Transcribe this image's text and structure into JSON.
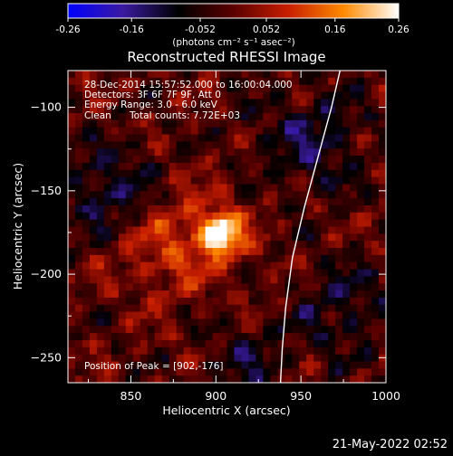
{
  "colorbar": {
    "ticks": [
      "-0.26",
      "-0.16",
      "-0.052",
      "0.052",
      "0.16",
      "0.26"
    ],
    "tick_values": [
      -0.26,
      -0.16,
      -0.052,
      0.052,
      0.16,
      0.26
    ],
    "range": [
      -0.26,
      0.26
    ],
    "unit_label": "(photons cm⁻² s⁻¹ asec⁻²)",
    "colormap": [
      "#0000ff",
      "#3a1aa0",
      "#000000",
      "#5a0000",
      "#c81e00",
      "#ff8a00",
      "#ffffff"
    ]
  },
  "chart_data": {
    "type": "heatmap",
    "title": "Reconstructed RHESSI Image",
    "xlabel": "Heliocentric X (arcsec)",
    "ylabel": "Heliocentric Y (arcsec)",
    "xlim": [
      813,
      1000
    ],
    "ylim": [
      -265,
      -78
    ],
    "x_ticks": [
      850,
      900,
      950,
      1000
    ],
    "y_ticks": [
      -100,
      -150,
      -200,
      -250
    ],
    "peak": {
      "x": 902,
      "y": -176
    },
    "limb_points": [
      [
        973,
        -78
      ],
      [
        968,
        -100
      ],
      [
        960,
        -130
      ],
      [
        952,
        -160
      ],
      [
        945,
        -190
      ],
      [
        941,
        -220
      ],
      [
        939,
        -245
      ],
      [
        938,
        -265
      ]
    ],
    "annotations": {
      "time_range": "28-Dec-2014 15:57:52.000 to 16:00:04.000",
      "detectors": "Detectors: 3F 6F 7F 9F, Att 0",
      "energy": "Energy Range: 3.0 - 6.0 keV",
      "method": "Clean",
      "total_counts": "Total counts: 7.72E+03",
      "peak_label": "Position of Peak = [902,-176]"
    }
  },
  "timestamp": "21-May-2022 02:52"
}
